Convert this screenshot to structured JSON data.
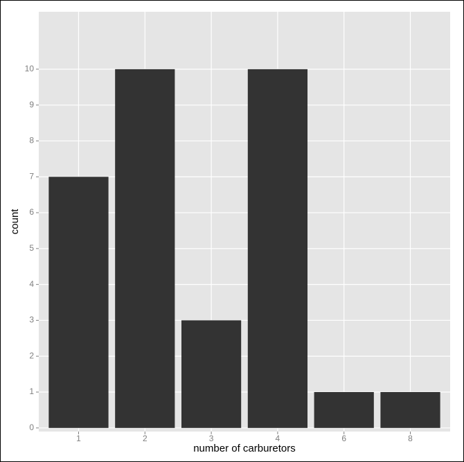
{
  "chart_data": {
    "type": "bar",
    "x_label": "number of carburetors",
    "y_label": "count",
    "categories": [
      "1",
      "2",
      "3",
      "4",
      "6",
      "8"
    ],
    "values": [
      7,
      10,
      3,
      10,
      1,
      1
    ],
    "color": "#333333",
    "ylim": [
      -0.1,
      11.6
    ],
    "yticks": [
      0,
      1,
      2,
      3,
      4,
      5,
      6,
      7,
      8,
      9,
      10
    ],
    "grid": true
  }
}
